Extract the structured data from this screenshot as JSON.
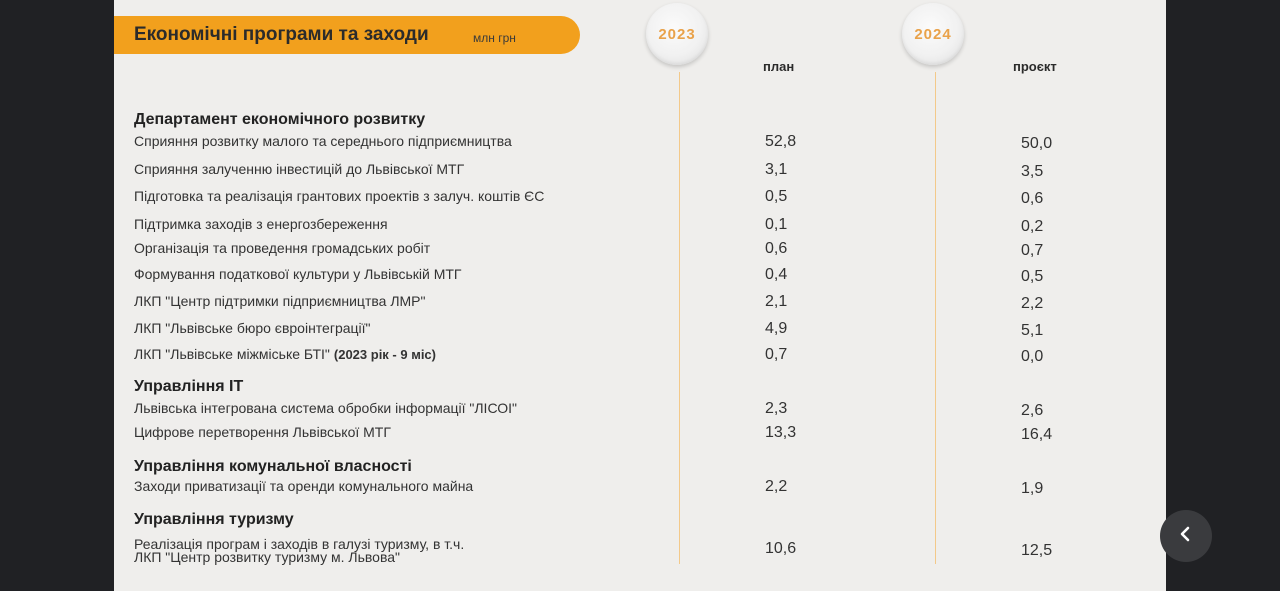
{
  "title": "Економічні програми та заходи",
  "unit": "млн грн",
  "years": {
    "y2023": "2023",
    "y2024": "2024"
  },
  "columns": {
    "plan": "план",
    "project": "проєкт"
  },
  "rows": [
    {
      "label": "Департамент економічного розвитку",
      "head": true
    },
    {
      "label": "Сприяння розвитку малого та середнього підприємництва",
      "v2023": "52,8",
      "v2024": "50,0"
    },
    {
      "label": "Сприяння залученню інвестицій до Львівської МТГ",
      "v2023": "3,1",
      "v2024": "3,5"
    },
    {
      "label": "Підготовка та реалізація грантових проектів з залуч. коштів ЄС",
      "v2023": "0,5",
      "v2024": "0,6"
    },
    {
      "label": "Підтримка заходів з енергозбереження",
      "v2023": "0,1",
      "v2024": "0,2"
    },
    {
      "label": "Організація та проведення громадських робіт",
      "v2023": "0,6",
      "v2024": "0,7"
    },
    {
      "label": "Формування податкової культури у Львівській МТГ",
      "v2023": "0,4",
      "v2024": "0,5"
    },
    {
      "label": "ЛКП \"Центр підтримки підприємництва ЛМР\"",
      "v2023": "2,1",
      "v2024": "2,2"
    },
    {
      "label": "ЛКП \"Львівське бюро євроінтеграції\"",
      "v2023": "4,9",
      "v2024": "5,1"
    },
    {
      "label": "ЛКП \"Львівське міжміське БТІ\"",
      "note": "(2023 рік - 9 міс)",
      "v2023": "0,7",
      "v2024": "0,0"
    },
    {
      "label": "Управління ІТ",
      "head": true
    },
    {
      "label": "Львівська інтегрована система обробки інформації \"ЛІСОІ\"",
      "v2023": "2,3",
      "v2024": "2,6"
    },
    {
      "label": "Цифрове перетворення Львівської МТГ",
      "v2023": "13,3",
      "v2024": "16,4"
    },
    {
      "label": "Управління комунальної власності",
      "head": true
    },
    {
      "label": "Заходи приватизації та оренди комунального майна",
      "v2023": "2,2",
      "v2024": "1,9"
    },
    {
      "label": "Управління туризму",
      "head": true
    },
    {
      "label": "Реалізація програм і заходів в галузі туризму, в т.ч.",
      "label2": "ЛКП \"Центр розвитку туризму м. Львова\"",
      "v2023": "10,6",
      "v2024": "12,5"
    }
  ],
  "back_icon": "chevron-left-icon"
}
